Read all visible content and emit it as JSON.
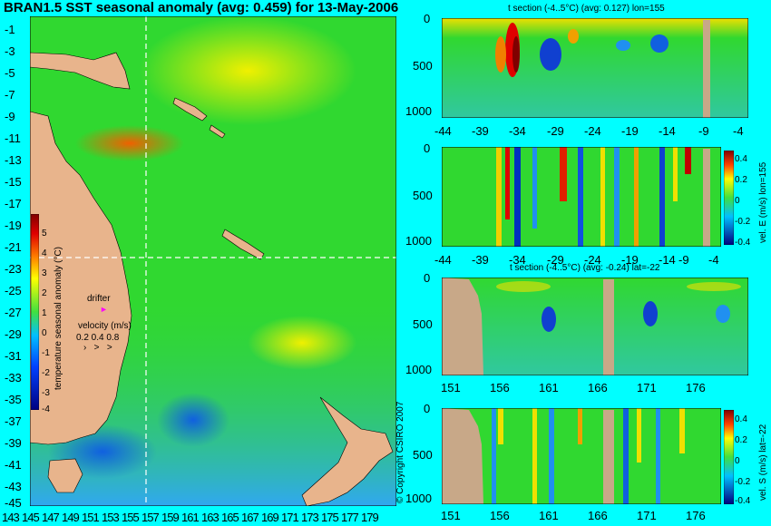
{
  "map": {
    "title": "BRAN1.5 SST seasonal anomaly (avg: 0.459) for 13-May-2006",
    "lat_ticks": [
      "-1",
      "-3",
      "-5",
      "-7",
      "-9",
      "-11",
      "-13",
      "-15",
      "-17",
      "-19",
      "-21",
      "-23",
      "-25",
      "-27",
      "-29",
      "-31",
      "-33",
      "-35",
      "-37",
      "-39",
      "-41",
      "-43",
      "-45"
    ],
    "lon_ticks": [
      "143",
      "145",
      "147",
      "149",
      "151",
      "153",
      "155",
      "157",
      "159",
      "161",
      "163",
      "165",
      "167",
      "169",
      "171",
      "173",
      "175",
      "177",
      "179"
    ],
    "colorbar_ticks": [
      "5",
      "4",
      "3",
      "2",
      "1",
      "0",
      "-1",
      "-2",
      "-3",
      "-4"
    ],
    "colorbar_label": "temperature seasonal anomaly (°C)",
    "drifter_label": "drifter",
    "velocity_label": "velocity (m/s)",
    "velocity_scale": "0.2 0.4 0.8",
    "crosshair": {
      "lon": 155,
      "lat": -22
    },
    "copyright": "© Copyright CSIRO 2007",
    "colors": {
      "land": "#e8b48c",
      "ocean_mid": "#30d830",
      "warm": "#f0f000",
      "cool": "#2090f0"
    }
  },
  "panels": [
    {
      "title": "t section (-4..5°C) (avg: 0.127) lon=155",
      "y_ticks": [
        "0",
        "500",
        "1000"
      ],
      "x_ticks": [
        "-44",
        "-39",
        "-34",
        "-29",
        "-24",
        "-19",
        "-14",
        "-9",
        "-4"
      ]
    },
    {
      "title": "",
      "y_ticks": [
        "0",
        "500",
        "1000"
      ],
      "x_ticks": [
        "-44",
        "-39",
        "-34",
        "-29",
        "-24",
        "-19",
        "-14",
        "-9",
        "-4"
      ],
      "colorbar_label": "vel. E (m/s) lon=155",
      "colorbar_ticks": [
        "0.4",
        "0.2",
        "0",
        "-0.2",
        "-0.4"
      ]
    },
    {
      "title": "t section (-4..5°C) (avg: -0.24) lat=-22",
      "y_ticks": [
        "0",
        "500",
        "1000"
      ],
      "x_ticks": [
        "151",
        "156",
        "161",
        "166",
        "171",
        "176"
      ]
    },
    {
      "title": "",
      "y_ticks": [
        "0",
        "500",
        "1000"
      ],
      "x_ticks": [
        "151",
        "156",
        "161",
        "166",
        "171",
        "176"
      ],
      "colorbar_label": "vel. S (m/s) lat=-22",
      "colorbar_ticks": [
        "0.4",
        "0.2",
        "0",
        "-0.2",
        "-0.4"
      ]
    }
  ]
}
